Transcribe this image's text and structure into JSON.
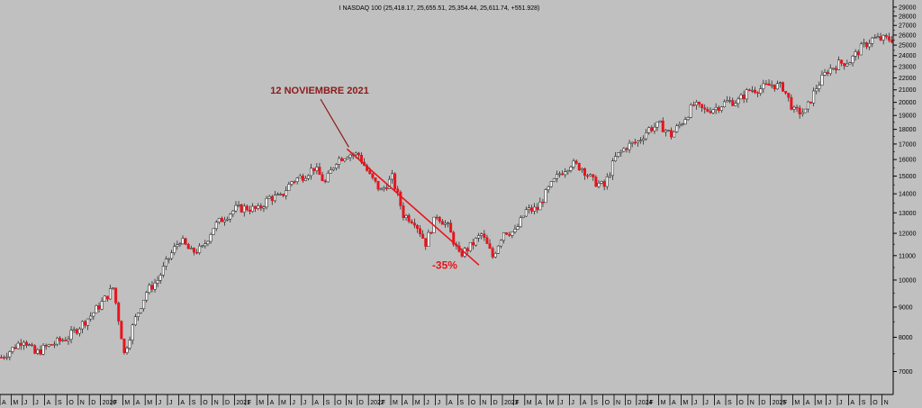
{
  "chart_data": {
    "type": "candlestick",
    "title": "I NASDAQ 100 (25,418.17, 25,655.51, 25,354.44, 25,611.74, +551.928)",
    "y_scale": "log",
    "ylim": [
      6400,
      29500
    ],
    "y_ticks": [
      7000,
      8000,
      9000,
      10000,
      11000,
      12000,
      13000,
      14000,
      15000,
      16000,
      17000,
      18000,
      19000,
      20000,
      21000,
      22000,
      23000,
      24000,
      25000,
      26000,
      27000,
      28000,
      29000
    ],
    "y_tick_labels": [
      "7000",
      "8000",
      "9000",
      "10000",
      "11000",
      "12000",
      "13000",
      "14000",
      "15000",
      "16000",
      "17000",
      "18000",
      "19000",
      "20000",
      "21000",
      "22000",
      "23000",
      "24000",
      "25000",
      "26000",
      "27000",
      "28000",
      "29000"
    ],
    "x_months": [
      "A",
      "M",
      "J",
      "J",
      "A",
      "S",
      "O",
      "N",
      "D",
      "2020",
      "F",
      "M",
      "A",
      "M",
      "J",
      "J",
      "A",
      "S",
      "O",
      "N",
      "D",
      "2021",
      "F",
      "M",
      "A",
      "M",
      "J",
      "J",
      "A",
      "S",
      "O",
      "N",
      "D",
      "2022",
      "F",
      "M",
      "A",
      "M",
      "J",
      "J",
      "A",
      "S",
      "O",
      "N",
      "D",
      "2023",
      "F",
      "M",
      "A",
      "M",
      "J",
      "J",
      "A",
      "S",
      "O",
      "N",
      "D",
      "2024",
      "F",
      "M",
      "A",
      "M",
      "J",
      "J",
      "A",
      "S",
      "O",
      "N",
      "D",
      "2025",
      "F",
      "M",
      "A",
      "M",
      "J",
      "J",
      "A",
      "S",
      "O",
      "N"
    ],
    "series": [
      {
        "values": [
          7400,
          7650,
          7950,
          7500,
          7700,
          7850,
          8000,
          8350,
          8700,
          9150,
          9700,
          7500,
          8600,
          9550,
          10000,
          10900,
          11700,
          11150,
          11300,
          12300,
          12800,
          13200,
          13250,
          13150,
          13800,
          13800,
          14700,
          15000,
          15500,
          14600,
          15950,
          16350,
          16300,
          15000,
          14150,
          14900,
          12900,
          12600,
          11550,
          12900,
          12300,
          11000,
          11400,
          11950,
          10950,
          12100,
          12050,
          13100,
          13200,
          14250,
          15150,
          15750,
          15500,
          14700,
          14400,
          16100,
          16850,
          17150,
          18050,
          18300,
          17600,
          18550,
          19800,
          19350,
          19600,
          20050,
          20100,
          21000,
          21100,
          21450,
          21200,
          19300,
          19250,
          21200,
          22650,
          23250,
          23500,
          24700,
          25600,
          25611.74
        ]
      }
    ],
    "annotations": [
      {
        "text": "12 NOVIEMBRE 2021",
        "color": "#8b1a1a"
      },
      {
        "text": "-35%",
        "color": "#e8141c"
      }
    ]
  },
  "colors": {
    "background": "#c0c0c0",
    "up": "#ffffff",
    "down": "#e8141c",
    "outline": "#1a1a1a",
    "axis": "#000000",
    "annotation_dark": "#8b1a1a",
    "annotation_red": "#e8141c"
  }
}
